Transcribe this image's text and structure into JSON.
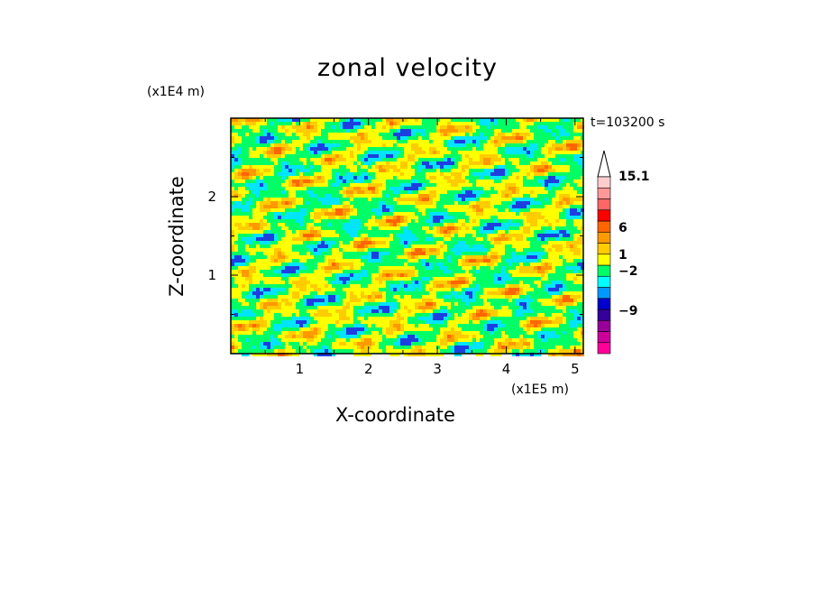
{
  "chart_data": {
    "type": "heatmap",
    "title": "zonal velocity",
    "xlabel": "X-coordinate",
    "ylabel": "Z-coordinate",
    "x_unit": "(x1E5 m)",
    "z_unit": "(x1E4 m)",
    "time_label": "t=103200 s",
    "xlim": [
      0,
      5.12
    ],
    "ylim": [
      0,
      3.0
    ],
    "x_ticks": [
      "1",
      "2",
      "3",
      "4",
      "5"
    ],
    "y_ticks": [
      "1",
      "2"
    ],
    "colorbar": {
      "labels": [
        "15.1",
        "6",
        "1",
        "-2",
        "-9"
      ],
      "colors": [
        "#ff0099",
        "#cc0099",
        "#990099",
        "#330099",
        "#0000cc",
        "#0099ff",
        "#00ffff",
        "#00ff66",
        "#ffff00",
        "#ffcc00",
        "#ff9900",
        "#ff6600",
        "#ff0000",
        "#ff6666",
        "#ff9999",
        "#ffcccc"
      ]
    }
  }
}
